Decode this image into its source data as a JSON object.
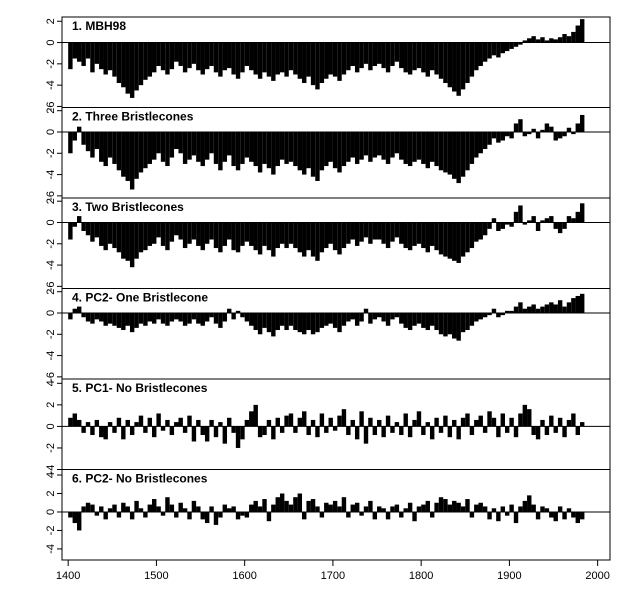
{
  "chart_data": {
    "type": "bar",
    "color": "#000000",
    "x": [
      1400,
      1405,
      1410,
      1415,
      1420,
      1425,
      1430,
      1435,
      1440,
      1445,
      1450,
      1455,
      1460,
      1465,
      1470,
      1475,
      1480,
      1485,
      1490,
      1495,
      1500,
      1505,
      1510,
      1515,
      1520,
      1525,
      1530,
      1535,
      1540,
      1545,
      1550,
      1555,
      1560,
      1565,
      1570,
      1575,
      1580,
      1585,
      1590,
      1595,
      1600,
      1605,
      1610,
      1615,
      1620,
      1625,
      1630,
      1635,
      1640,
      1645,
      1650,
      1655,
      1660,
      1665,
      1670,
      1675,
      1680,
      1685,
      1690,
      1695,
      1700,
      1705,
      1710,
      1715,
      1720,
      1725,
      1730,
      1735,
      1740,
      1745,
      1750,
      1755,
      1760,
      1765,
      1770,
      1775,
      1780,
      1785,
      1790,
      1795,
      1800,
      1805,
      1810,
      1815,
      1820,
      1825,
      1830,
      1835,
      1840,
      1845,
      1850,
      1855,
      1860,
      1865,
      1870,
      1875,
      1880,
      1885,
      1890,
      1895,
      1900,
      1905,
      1910,
      1915,
      1920,
      1925,
      1930,
      1935,
      1940,
      1945,
      1950,
      1955,
      1960,
      1965,
      1970,
      1975,
      1980
    ],
    "xlim": [
      1393,
      2014
    ],
    "xticks": [
      1400,
      1500,
      1600,
      1700,
      1800,
      1900,
      2000
    ],
    "series": [
      {
        "name": "1. MBH98",
        "ylim": [
          -6.1,
          2.4
        ],
        "yticks": [
          2,
          0,
          -2,
          -4,
          -6
        ],
        "values": [
          -2.5,
          -1.5,
          -1.8,
          -2.2,
          -1.5,
          -2.8,
          -2.0,
          -2.5,
          -3.0,
          -2.6,
          -3.2,
          -3.8,
          -4.2,
          -4.8,
          -5.2,
          -4.5,
          -4.0,
          -3.5,
          -3.2,
          -2.8,
          -2.2,
          -2.6,
          -3.0,
          -2.5,
          -1.8,
          -2.2,
          -2.8,
          -2.4,
          -2.0,
          -2.6,
          -3.0,
          -2.5,
          -2.2,
          -2.8,
          -3.2,
          -2.6,
          -2.4,
          -3.0,
          -3.4,
          -2.8,
          -2.2,
          -2.6,
          -3.0,
          -3.4,
          -2.8,
          -3.2,
          -3.6,
          -3.0,
          -2.8,
          -3.2,
          -2.6,
          -3.0,
          -3.4,
          -3.8,
          -3.2,
          -4.0,
          -4.4,
          -3.8,
          -3.4,
          -3.0,
          -3.2,
          -3.6,
          -3.0,
          -2.6,
          -2.2,
          -2.8,
          -2.4,
          -2.0,
          -2.6,
          -2.2,
          -2.0,
          -2.4,
          -2.8,
          -2.2,
          -1.8,
          -2.4,
          -2.8,
          -3.0,
          -2.6,
          -2.4,
          -2.8,
          -3.2,
          -2.6,
          -3.0,
          -3.4,
          -3.8,
          -4.2,
          -4.6,
          -5.0,
          -4.4,
          -3.8,
          -3.2,
          -2.6,
          -2.2,
          -1.8,
          -1.5,
          -1.2,
          -1.4,
          -1.0,
          -0.8,
          -0.6,
          -0.4,
          -0.2,
          0.2,
          0.4,
          0.6,
          0.3,
          0.5,
          0.2,
          0.4,
          0.3,
          0.5,
          0.8,
          0.6,
          1.0,
          1.6,
          2.2
        ]
      },
      {
        "name": "2. Three Bristlecones",
        "ylim": [
          -6.2,
          2.3
        ],
        "yticks": [
          2,
          0,
          -2,
          -4,
          -6
        ],
        "values": [
          -2.0,
          -0.8,
          0.5,
          -1.2,
          -1.8,
          -2.4,
          -1.6,
          -2.8,
          -3.2,
          -2.4,
          -3.0,
          -3.6,
          -4.2,
          -4.6,
          -5.4,
          -4.4,
          -3.8,
          -3.4,
          -3.0,
          -2.6,
          -2.0,
          -2.8,
          -3.2,
          -2.4,
          -1.6,
          -2.0,
          -3.0,
          -2.6,
          -2.2,
          -2.8,
          -3.2,
          -2.6,
          -2.0,
          -3.0,
          -3.6,
          -2.8,
          -2.2,
          -3.2,
          -3.6,
          -3.0,
          -2.4,
          -2.8,
          -3.2,
          -3.8,
          -3.0,
          -3.4,
          -4.0,
          -3.2,
          -2.6,
          -3.0,
          -2.8,
          -3.2,
          -3.6,
          -4.0,
          -3.4,
          -4.2,
          -4.6,
          -3.6,
          -3.2,
          -2.8,
          -3.4,
          -3.8,
          -3.2,
          -2.8,
          -2.4,
          -3.0,
          -2.6,
          -2.2,
          -2.8,
          -2.4,
          -2.2,
          -2.6,
          -3.0,
          -2.4,
          -2.0,
          -2.6,
          -3.0,
          -3.2,
          -2.8,
          -2.6,
          -3.0,
          -3.4,
          -2.8,
          -3.2,
          -3.6,
          -3.8,
          -4.0,
          -4.4,
          -4.8,
          -4.2,
          -3.6,
          -3.0,
          -2.4,
          -2.0,
          -1.6,
          -1.2,
          -0.6,
          -1.0,
          -0.8,
          -0.4,
          -0.6,
          0.8,
          1.2,
          -0.4,
          -0.2,
          0.3,
          -0.6,
          0.2,
          0.8,
          0.5,
          -0.8,
          -0.6,
          -0.4,
          0.4,
          -0.2,
          0.8,
          1.6
        ]
      },
      {
        "name": "3. Two Bristlecones",
        "ylim": [
          -6.2,
          2.3
        ],
        "yticks": [
          2,
          0,
          -2,
          -4,
          -6
        ],
        "values": [
          -1.6,
          -0.4,
          0.6,
          -0.8,
          -1.2,
          -1.8,
          -1.4,
          -2.2,
          -2.6,
          -2.0,
          -2.4,
          -2.8,
          -3.4,
          -3.6,
          -4.2,
          -3.4,
          -2.8,
          -2.6,
          -2.2,
          -2.0,
          -1.4,
          -2.2,
          -2.6,
          -1.8,
          -1.2,
          -1.6,
          -2.4,
          -2.0,
          -1.6,
          -2.2,
          -2.6,
          -2.0,
          -1.6,
          -2.4,
          -2.8,
          -2.2,
          -1.6,
          -2.6,
          -2.8,
          -2.2,
          -1.8,
          -2.2,
          -2.6,
          -3.0,
          -2.2,
          -2.6,
          -3.2,
          -2.4,
          -2.0,
          -2.4,
          -2.0,
          -2.4,
          -2.8,
          -3.2,
          -2.6,
          -3.2,
          -3.6,
          -2.8,
          -2.4,
          -2.0,
          -2.6,
          -3.0,
          -2.4,
          -2.0,
          -1.6,
          -2.2,
          -1.8,
          -1.4,
          -2.0,
          -1.6,
          -1.6,
          -2.0,
          -2.4,
          -1.8,
          -1.4,
          -2.0,
          -2.4,
          -2.6,
          -2.2,
          -2.0,
          -2.4,
          -2.8,
          -2.2,
          -2.6,
          -3.0,
          -3.2,
          -3.4,
          -3.6,
          -3.8,
          -3.2,
          -2.8,
          -2.4,
          -1.8,
          -1.6,
          -1.2,
          -0.6,
          0.4,
          -0.8,
          -0.6,
          -0.2,
          -0.4,
          1.0,
          1.6,
          -0.2,
          0.2,
          0.6,
          -0.8,
          0.2,
          0.4,
          0.6,
          -0.6,
          -1.0,
          -0.6,
          0.6,
          0.4,
          1.0,
          1.8
        ]
      },
      {
        "name": "4. PC2- One Bristlecone",
        "ylim": [
          -6.2,
          2.3
        ],
        "yticks": [
          2,
          0,
          -2,
          -4,
          -6
        ],
        "values": [
          -0.6,
          0.4,
          0.6,
          -0.4,
          -0.8,
          -1.0,
          -0.6,
          -0.8,
          -1.2,
          -1.0,
          -1.2,
          -1.4,
          -1.6,
          -1.2,
          -1.8,
          -1.4,
          -1.0,
          -1.2,
          -0.8,
          -1.0,
          -0.6,
          -1.0,
          -1.2,
          -0.8,
          -0.6,
          -0.8,
          -1.2,
          -1.0,
          -0.6,
          -1.0,
          -1.2,
          -0.8,
          -0.4,
          -1.0,
          -1.4,
          -0.8,
          0.4,
          -0.6,
          0.2,
          -0.4,
          -0.8,
          -1.2,
          -1.6,
          -2.0,
          -1.4,
          -1.8,
          -2.2,
          -1.6,
          -1.2,
          -1.6,
          -1.2,
          -1.6,
          -1.8,
          -2.0,
          -1.6,
          -2.0,
          -1.8,
          -1.4,
          -1.2,
          -1.0,
          -1.4,
          -1.8,
          -1.2,
          -0.8,
          -0.6,
          -1.2,
          -0.8,
          0.4,
          -1.0,
          -0.6,
          -0.4,
          -0.8,
          -1.2,
          -0.6,
          -0.4,
          -1.0,
          -1.4,
          -1.6,
          -1.2,
          -1.0,
          -1.4,
          -1.6,
          -1.2,
          -1.6,
          -2.0,
          -2.2,
          -2.0,
          -2.4,
          -2.6,
          -1.8,
          -1.6,
          -1.2,
          -0.8,
          -0.6,
          -0.4,
          -0.2,
          0.4,
          -0.4,
          -0.2,
          0.2,
          0.2,
          0.6,
          1.0,
          0.4,
          0.6,
          0.8,
          0.4,
          0.6,
          0.8,
          1.0,
          0.8,
          1.2,
          0.6,
          1.0,
          1.4,
          1.6,
          1.8
        ]
      },
      {
        "name": "5. PC1- No Bristlecones",
        "ylim": [
          -4.0,
          4.4
        ],
        "yticks": [
          4,
          2,
          0,
          -2,
          -4
        ],
        "values": [
          0.8,
          1.2,
          0.6,
          -0.6,
          0.4,
          -0.8,
          0.6,
          -1.0,
          -1.2,
          0.4,
          -0.6,
          0.8,
          -1.2,
          0.6,
          -0.8,
          0.4,
          1.0,
          -0.6,
          0.8,
          -1.0,
          1.2,
          -0.4,
          0.6,
          -0.8,
          0.4,
          0.8,
          -0.6,
          1.0,
          -1.4,
          0.6,
          -0.8,
          -1.4,
          0.6,
          -1.0,
          0.4,
          -1.6,
          0.8,
          -0.6,
          -2.0,
          -1.2,
          0.6,
          1.4,
          2.0,
          -1.0,
          -0.8,
          0.6,
          -1.2,
          0.8,
          -0.6,
          1.0,
          1.2,
          -0.6,
          0.8,
          1.4,
          -0.8,
          0.6,
          -1.0,
          1.2,
          -0.6,
          0.8,
          -0.4,
          1.0,
          1.6,
          -0.8,
          0.6,
          -1.2,
          1.4,
          -1.6,
          0.8,
          -0.8,
          0.6,
          -1.0,
          1.0,
          -0.6,
          0.4,
          -0.8,
          1.2,
          -1.0,
          0.6,
          1.4,
          -0.8,
          0.4,
          -1.2,
          0.8,
          -0.6,
          1.0,
          -1.0,
          0.6,
          -1.2,
          0.8,
          1.2,
          -0.8,
          0.6,
          1.0,
          -0.6,
          1.4,
          0.8,
          -1.0,
          1.2,
          -0.6,
          0.8,
          -1.0,
          1.2,
          2.0,
          1.6,
          -0.8,
          -1.2,
          0.6,
          -0.8,
          1.0,
          -0.6,
          0.8,
          -1.0,
          0.6,
          1.2,
          -0.8,
          0.4
        ]
      },
      {
        "name": "6. PC2- No Bristlecones",
        "ylim": [
          -5.2,
          4.6
        ],
        "yticks": [
          4,
          2,
          0,
          -2,
          -4
        ],
        "values": [
          -0.6,
          -1.2,
          -2.0,
          0.6,
          1.0,
          0.8,
          -0.4,
          0.6,
          -0.8,
          0.4,
          0.8,
          -0.6,
          1.0,
          0.6,
          -0.8,
          1.2,
          0.4,
          -0.6,
          0.8,
          1.4,
          0.6,
          -0.4,
          1.6,
          0.8,
          -0.6,
          1.0,
          0.4,
          -0.8,
          1.2,
          0.6,
          -0.8,
          -1.2,
          0.6,
          -1.4,
          -0.6,
          0.8,
          0.4,
          0.6,
          -0.8,
          -0.4,
          -0.6,
          0.8,
          1.2,
          0.6,
          1.4,
          -1.0,
          0.8,
          1.6,
          2.0,
          1.2,
          0.8,
          1.6,
          2.0,
          -0.8,
          1.2,
          1.4,
          0.6,
          -0.6,
          1.0,
          0.8,
          1.2,
          0.6,
          1.6,
          -0.6,
          0.8,
          1.0,
          -0.4,
          0.6,
          1.2,
          -0.8,
          0.6,
          0.4,
          -0.8,
          0.6,
          0.8,
          -0.6,
          0.4,
          1.0,
          -1.0,
          0.6,
          0.8,
          1.2,
          -0.6,
          1.0,
          1.6,
          1.4,
          0.8,
          1.2,
          1.0,
          0.6,
          1.4,
          -0.6,
          0.8,
          1.0,
          0.6,
          -0.8,
          0.4,
          -1.0,
          0.6,
          -0.4,
          0.8,
          -1.2,
          0.6,
          1.2,
          1.8,
          0.8,
          -0.8,
          0.6,
          0.4,
          -0.6,
          -1.0,
          0.6,
          -0.8,
          0.4,
          -0.6,
          -1.2,
          -0.8
        ]
      }
    ]
  }
}
